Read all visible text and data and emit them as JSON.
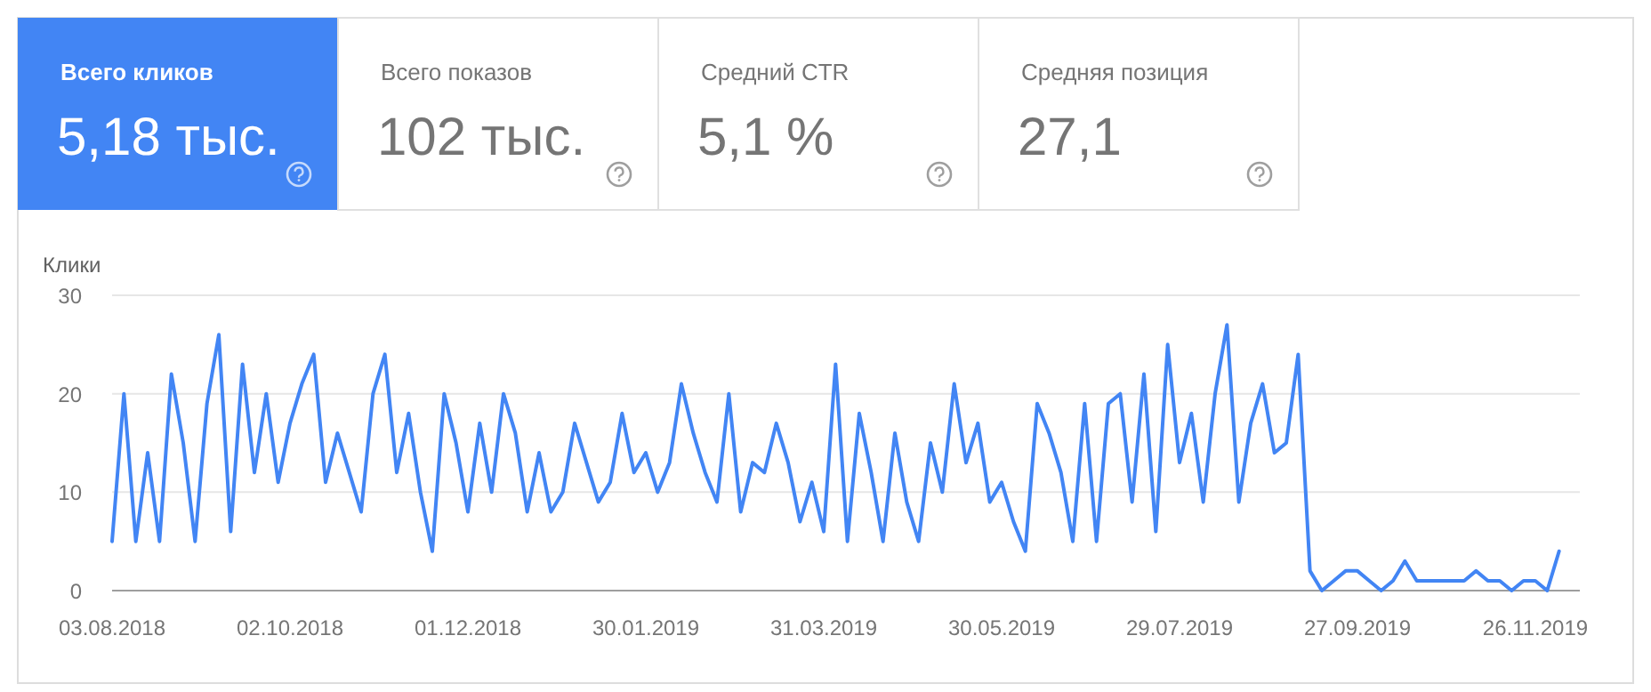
{
  "chart_data": [
    {
      "type": "other",
      "title": "Всего кликов",
      "annotations": [
        "5,18 тыс."
      ],
      "color": "#4285f4"
    },
    {
      "type": "other",
      "title": "Всего показов",
      "annotations": [
        "102 тыс."
      ]
    },
    {
      "type": "other",
      "title": "Средний CTR",
      "annotations": [
        "5,1 %"
      ]
    },
    {
      "type": "other",
      "title": "Средняя позиция",
      "annotations": [
        "27,1"
      ]
    },
    {
      "type": "line",
      "ylabel": "Клики",
      "grid": "y",
      "color": "#4285f4",
      "x": [
        "2018-08-03",
        "2018-08-07",
        "2018-08-11",
        "2018-08-15",
        "2018-08-19",
        "2018-08-23",
        "2018-08-27",
        "2018-08-31",
        "2018-09-04",
        "2018-09-08",
        "2018-09-12",
        "2018-09-16",
        "2018-09-20",
        "2018-09-24",
        "2018-09-28",
        "2018-10-02",
        "2018-10-06",
        "2018-10-10",
        "2018-10-14",
        "2018-10-18",
        "2018-10-22",
        "2018-10-26",
        "2018-10-30",
        "2018-11-03",
        "2018-11-07",
        "2018-11-11",
        "2018-11-15",
        "2018-11-19",
        "2018-11-23",
        "2018-11-27",
        "2018-12-01",
        "2018-12-05",
        "2018-12-09",
        "2018-12-13",
        "2018-12-17",
        "2018-12-21",
        "2018-12-25",
        "2018-12-29",
        "2019-01-02",
        "2019-01-06",
        "2019-01-10",
        "2019-01-14",
        "2019-01-18",
        "2019-01-22",
        "2019-01-26",
        "2019-01-30",
        "2019-02-03",
        "2019-02-07",
        "2019-02-11",
        "2019-02-15",
        "2019-02-19",
        "2019-02-23",
        "2019-02-27",
        "2019-03-03",
        "2019-03-07",
        "2019-03-11",
        "2019-03-15",
        "2019-03-19",
        "2019-03-23",
        "2019-03-27",
        "2019-03-31",
        "2019-04-04",
        "2019-04-08",
        "2019-04-12",
        "2019-04-16",
        "2019-04-20",
        "2019-04-24",
        "2019-04-28",
        "2019-05-02",
        "2019-05-06",
        "2019-05-10",
        "2019-05-14",
        "2019-05-18",
        "2019-05-22",
        "2019-05-26",
        "2019-05-30",
        "2019-06-03",
        "2019-06-07",
        "2019-06-11",
        "2019-06-15",
        "2019-06-19",
        "2019-06-23",
        "2019-06-27",
        "2019-07-01",
        "2019-07-05",
        "2019-07-09",
        "2019-07-13",
        "2019-07-17",
        "2019-07-21",
        "2019-07-25",
        "2019-07-29",
        "2019-08-02",
        "2019-08-06",
        "2019-08-10",
        "2019-08-14",
        "2019-08-18",
        "2019-08-22",
        "2019-08-26",
        "2019-08-30",
        "2019-09-03",
        "2019-09-07",
        "2019-09-11",
        "2019-09-15",
        "2019-09-19",
        "2019-09-23",
        "2019-09-27",
        "2019-10-01",
        "2019-10-05",
        "2019-10-09",
        "2019-10-13",
        "2019-10-17",
        "2019-10-21",
        "2019-10-25",
        "2019-10-29",
        "2019-11-02",
        "2019-11-06",
        "2019-11-10",
        "2019-11-14",
        "2019-11-18",
        "2019-11-22",
        "2019-11-26",
        "2019-11-30",
        "2019-12-04"
      ],
      "values": [
        5,
        20,
        5,
        14,
        5,
        22,
        15,
        5,
        19,
        26,
        6,
        23,
        12,
        20,
        11,
        17,
        21,
        24,
        11,
        16,
        12,
        8,
        20,
        24,
        12,
        18,
        10,
        4,
        20,
        15,
        8,
        17,
        10,
        20,
        16,
        8,
        14,
        8,
        10,
        17,
        13,
        9,
        11,
        18,
        12,
        14,
        10,
        13,
        21,
        16,
        12,
        9,
        20,
        8,
        13,
        12,
        17,
        13,
        7,
        11,
        6,
        23,
        5,
        18,
        12,
        5,
        16,
        9,
        5,
        15,
        10,
        21,
        13,
        17,
        9,
        11,
        7,
        4,
        19,
        16,
        12,
        5,
        19,
        5,
        19,
        20,
        9,
        22,
        6,
        25,
        13,
        18,
        9,
        20,
        27,
        9,
        17,
        21,
        14,
        15,
        24,
        2,
        0,
        1,
        2,
        2,
        1,
        0,
        1,
        3,
        1,
        1,
        1,
        1,
        1,
        2,
        1,
        1,
        0,
        1,
        1,
        0,
        4
      ],
      "xlim": [
        "2018-08-03",
        "2019-12-11"
      ],
      "xticks": [
        {
          "value": "2018-08-03",
          "label": "03.08.2018"
        },
        {
          "value": "2018-10-02",
          "label": "02.10.2018"
        },
        {
          "value": "2018-12-01",
          "label": "01.12.2018"
        },
        {
          "value": "2019-01-30",
          "label": "30.01.2019"
        },
        {
          "value": "2019-03-31",
          "label": "31.03.2019"
        },
        {
          "value": "2019-05-30",
          "label": "30.05.2019"
        },
        {
          "value": "2019-07-29",
          "label": "29.07.2019"
        },
        {
          "value": "2019-09-27",
          "label": "27.09.2019"
        },
        {
          "value": "2019-11-26",
          "label": "26.11.2019"
        }
      ],
      "ylim": [
        0,
        30
      ],
      "yticks": [
        0,
        10,
        20,
        30
      ]
    }
  ]
}
